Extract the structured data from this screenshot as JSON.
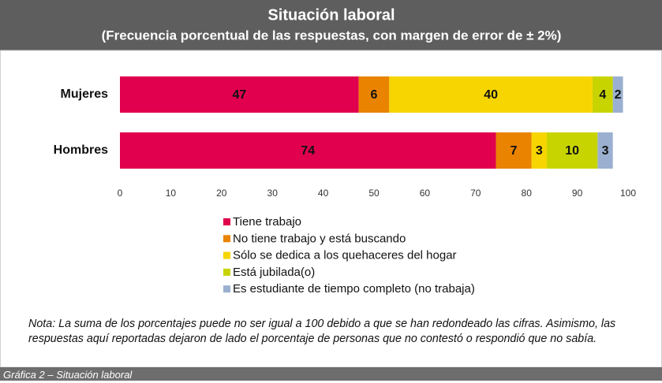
{
  "chart_data": {
    "type": "stacked-bar-horizontal",
    "title": "Situación laboral",
    "subtitle": "(Frecuencia porcentual de las respuestas, con margen de error de ± 2%)",
    "categories": [
      "Mujeres",
      "Hombres"
    ],
    "series": [
      {
        "name": "Tiene trabajo",
        "color": "#e0004d",
        "values": [
          47,
          74
        ]
      },
      {
        "name": "No tiene trabajo y está buscando",
        "color": "#e98300",
        "values": [
          6,
          7
        ]
      },
      {
        "name": "Sólo se dedica a los quehaceres del hogar",
        "color": "#f7d500",
        "values": [
          40,
          3
        ]
      },
      {
        "name": "Está jubilada(o)",
        "color": "#c8d400",
        "values": [
          4,
          10
        ]
      },
      {
        "name": "Es estudiante de tiempo completo (no trabaja)",
        "color": "#9bb0d0",
        "values": [
          2,
          3
        ]
      }
    ],
    "xlim": [
      0,
      100
    ],
    "xticks": [
      0,
      10,
      20,
      30,
      40,
      50,
      60,
      70,
      80,
      90,
      100
    ],
    "grid": false,
    "note": "Nota: La suma de los porcentajes puede no ser igual a 100 debido a que se han redondeado las cifras. Asimismo, las respuestas aquí reportadas dejaron de lado el porcentaje de personas que no contestó o respondió que no sabía.",
    "caption": "Gráfica 2 – Situación laboral"
  }
}
